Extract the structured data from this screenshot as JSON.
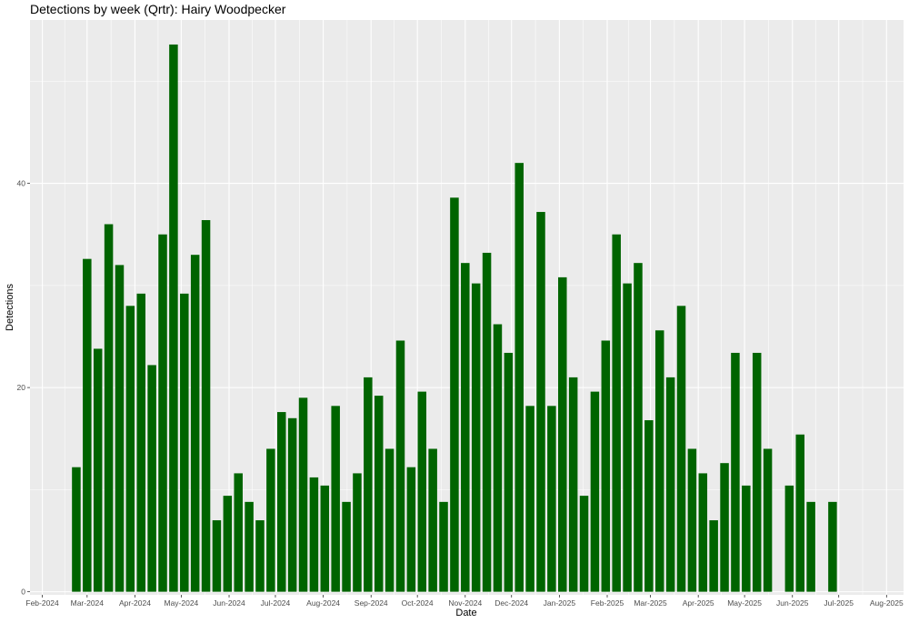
{
  "chart_data": {
    "type": "bar",
    "title": "Detections by week (Qrtr): Hairy Woodpecker",
    "xlabel": "Date",
    "ylabel": "Detections",
    "ylim": [
      -0.3,
      56
    ],
    "y_ticks": [
      0,
      20,
      40
    ],
    "x_range": [
      "2024-01-24",
      "2025-08-12"
    ],
    "x_ticks": [
      {
        "date": "2024-02-01",
        "label": "Feb-2024"
      },
      {
        "date": "2024-03-01",
        "label": "Mar-2024"
      },
      {
        "date": "2024-04-01",
        "label": "Apr-2024"
      },
      {
        "date": "2024-05-01",
        "label": "May-2024"
      },
      {
        "date": "2024-06-01",
        "label": "Jun-2024"
      },
      {
        "date": "2024-07-01",
        "label": "Jul-2024"
      },
      {
        "date": "2024-08-01",
        "label": "Aug-2024"
      },
      {
        "date": "2024-09-01",
        "label": "Sep-2024"
      },
      {
        "date": "2024-10-01",
        "label": "Oct-2024"
      },
      {
        "date": "2024-11-01",
        "label": "Nov-2024"
      },
      {
        "date": "2024-12-01",
        "label": "Dec-2024"
      },
      {
        "date": "2025-01-01",
        "label": "Jan-2025"
      },
      {
        "date": "2025-02-01",
        "label": "Feb-2025"
      },
      {
        "date": "2025-03-01",
        "label": "Mar-2025"
      },
      {
        "date": "2025-04-01",
        "label": "Apr-2025"
      },
      {
        "date": "2025-05-01",
        "label": "May-2025"
      },
      {
        "date": "2025-06-01",
        "label": "Jun-2025"
      },
      {
        "date": "2025-07-01",
        "label": "Jul-2025"
      },
      {
        "date": "2025-08-01",
        "label": "Aug-2025"
      }
    ],
    "grid": true,
    "bar_color": "#006400",
    "panel_color": "#ebebeb",
    "grid_color": "#ffffff",
    "x": [
      "2024-02-23",
      "2024-03-01",
      "2024-03-08",
      "2024-03-15",
      "2024-03-22",
      "2024-03-29",
      "2024-04-05",
      "2024-04-12",
      "2024-04-19",
      "2024-04-26",
      "2024-05-03",
      "2024-05-10",
      "2024-05-17",
      "2024-05-24",
      "2024-05-31",
      "2024-06-07",
      "2024-06-14",
      "2024-06-21",
      "2024-06-28",
      "2024-07-05",
      "2024-07-12",
      "2024-07-19",
      "2024-07-26",
      "2024-08-02",
      "2024-08-09",
      "2024-08-16",
      "2024-08-23",
      "2024-08-30",
      "2024-09-06",
      "2024-09-13",
      "2024-09-20",
      "2024-09-27",
      "2024-10-04",
      "2024-10-11",
      "2024-10-18",
      "2024-10-25",
      "2024-11-01",
      "2024-11-08",
      "2024-11-15",
      "2024-11-22",
      "2024-11-29",
      "2024-12-06",
      "2024-12-13",
      "2024-12-20",
      "2024-12-27",
      "2025-01-03",
      "2025-01-10",
      "2025-01-17",
      "2025-01-24",
      "2025-01-31",
      "2025-02-07",
      "2025-02-14",
      "2025-02-21",
      "2025-02-28",
      "2025-03-07",
      "2025-03-14",
      "2025-03-21",
      "2025-03-28",
      "2025-04-04",
      "2025-04-11",
      "2025-04-18",
      "2025-04-25",
      "2025-05-02",
      "2025-05-09",
      "2025-05-16",
      "2025-05-30",
      "2025-06-06",
      "2025-06-13",
      "2025-06-27"
    ],
    "values": [
      12.2,
      32.6,
      23.8,
      36.0,
      32.0,
      28.0,
      29.2,
      22.2,
      35.0,
      53.6,
      29.2,
      33.0,
      36.4,
      7.0,
      9.4,
      11.6,
      8.8,
      7.0,
      14.0,
      17.6,
      17.0,
      19.0,
      11.2,
      10.4,
      18.2,
      8.8,
      11.6,
      21.0,
      19.2,
      14.0,
      24.6,
      12.2,
      19.6,
      14.0,
      8.8,
      38.6,
      32.2,
      30.2,
      33.2,
      26.2,
      23.4,
      42.0,
      18.2,
      37.2,
      18.2,
      30.8,
      21.0,
      9.4,
      19.6,
      24.6,
      35.0,
      30.2,
      32.2,
      16.8,
      25.6,
      21.0,
      28.0,
      14.0,
      11.6,
      7.0,
      12.6,
      23.4,
      10.4,
      23.4,
      14.0,
      10.4,
      15.4,
      8.8,
      8.8
    ]
  }
}
